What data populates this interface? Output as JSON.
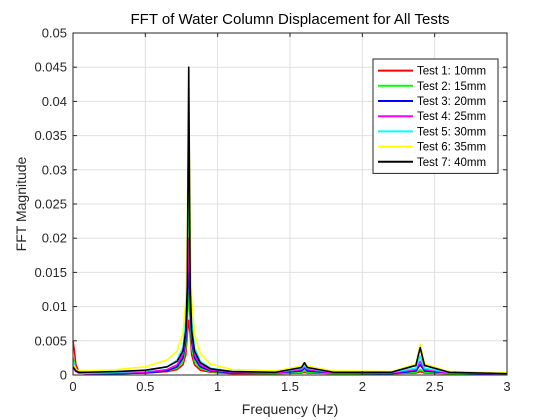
{
  "chart_data": {
    "type": "line",
    "title": "FFT of Water Column Displacement for All Tests",
    "xlabel": "Frequency (Hz)",
    "ylabel": "FFT Magnitude",
    "xlim": [
      0,
      3
    ],
    "ylim": [
      0,
      0.05
    ],
    "x_ticks": [
      0,
      0.5,
      1,
      1.5,
      2,
      2.5,
      3
    ],
    "x_tick_labels": [
      "0",
      "0.5",
      "1",
      "1.5",
      "2",
      "2.5",
      "3"
    ],
    "y_ticks": [
      0,
      0.005,
      0.01,
      0.015,
      0.02,
      0.025,
      0.03,
      0.035,
      0.04,
      0.045,
      0.05
    ],
    "y_tick_labels": [
      "0",
      "0.005",
      "0.01",
      "0.015",
      "0.02",
      "0.025",
      "0.03",
      "0.035",
      "0.04",
      "0.045",
      "0.05"
    ],
    "grid": true,
    "legend_position": "top-right",
    "series": [
      {
        "name": "Test 1: 10mm",
        "color": "#ff0000",
        "x": [
          0,
          0.01,
          0.02,
          0.04,
          0.1,
          0.3,
          0.5,
          0.65,
          0.72,
          0.76,
          0.78,
          0.79,
          0.8,
          0.81,
          0.82,
          0.84,
          0.88,
          0.95,
          1.1,
          1.4,
          1.58,
          1.6,
          1.62,
          1.8,
          2.2,
          2.37,
          2.4,
          2.43,
          2.6,
          3.0
        ],
        "values": [
          0.005,
          0.0035,
          0.0015,
          0.0005,
          0.0002,
          0.0002,
          0.0003,
          0.0005,
          0.0008,
          0.0015,
          0.003,
          0.006,
          0.008,
          0.006,
          0.003,
          0.0015,
          0.0007,
          0.0004,
          0.0002,
          0.0002,
          0.0003,
          0.0004,
          0.0003,
          0.0002,
          0.0002,
          0.0003,
          0.0005,
          0.0003,
          0.0002,
          0.0001
        ]
      },
      {
        "name": "Test 2: 15mm",
        "color": "#00ff00",
        "x": [
          0,
          0.01,
          0.02,
          0.04,
          0.1,
          0.3,
          0.5,
          0.65,
          0.72,
          0.76,
          0.78,
          0.79,
          0.8,
          0.81,
          0.82,
          0.84,
          0.88,
          0.95,
          1.1,
          1.4,
          1.58,
          1.6,
          1.62,
          1.8,
          2.2,
          2.37,
          2.4,
          2.43,
          2.6,
          3.0
        ],
        "values": [
          0.0025,
          0.0018,
          0.0008,
          0.0004,
          0.0002,
          0.0002,
          0.0003,
          0.0006,
          0.001,
          0.002,
          0.004,
          0.008,
          0.012,
          0.008,
          0.004,
          0.002,
          0.001,
          0.0005,
          0.0003,
          0.0002,
          0.0004,
          0.0006,
          0.0004,
          0.0002,
          0.0002,
          0.0004,
          0.0008,
          0.0004,
          0.0002,
          0.0001
        ]
      },
      {
        "name": "Test 3: 20mm",
        "color": "#0000ff",
        "x": [
          0,
          0.01,
          0.02,
          0.04,
          0.1,
          0.3,
          0.5,
          0.65,
          0.72,
          0.76,
          0.78,
          0.79,
          0.8,
          0.81,
          0.82,
          0.84,
          0.88,
          0.95,
          1.1,
          1.4,
          1.58,
          1.6,
          1.62,
          1.8,
          2.2,
          2.37,
          2.4,
          2.43,
          2.6,
          3.0
        ],
        "values": [
          0.0015,
          0.001,
          0.0006,
          0.0003,
          0.0002,
          0.0002,
          0.0003,
          0.0006,
          0.0012,
          0.0025,
          0.005,
          0.01,
          0.016,
          0.01,
          0.005,
          0.0025,
          0.0012,
          0.0006,
          0.0003,
          0.0003,
          0.0006,
          0.001,
          0.0006,
          0.0003,
          0.0002,
          0.0006,
          0.0015,
          0.0006,
          0.0003,
          0.0001
        ]
      },
      {
        "name": "Test 4: 25mm",
        "color": "#ff00ff",
        "x": [
          0,
          0.01,
          0.02,
          0.04,
          0.1,
          0.3,
          0.5,
          0.65,
          0.72,
          0.76,
          0.78,
          0.79,
          0.8,
          0.81,
          0.82,
          0.84,
          0.88,
          0.95,
          1.1,
          1.4,
          1.58,
          1.6,
          1.62,
          1.8,
          2.2,
          2.37,
          2.4,
          2.43,
          2.6,
          3.0
        ],
        "values": [
          0.001,
          0.0008,
          0.0005,
          0.0003,
          0.0002,
          0.0003,
          0.0004,
          0.0008,
          0.0015,
          0.003,
          0.006,
          0.012,
          0.02,
          0.012,
          0.006,
          0.003,
          0.0015,
          0.0007,
          0.0004,
          0.0003,
          0.0008,
          0.0012,
          0.0008,
          0.0003,
          0.0003,
          0.0008,
          0.002,
          0.0008,
          0.0003,
          0.0002
        ]
      },
      {
        "name": "Test 5: 30mm",
        "color": "#00ffff",
        "x": [
          0,
          0.01,
          0.02,
          0.04,
          0.1,
          0.3,
          0.5,
          0.65,
          0.72,
          0.76,
          0.78,
          0.79,
          0.8,
          0.81,
          0.82,
          0.84,
          0.88,
          0.95,
          1.1,
          1.4,
          1.58,
          1.6,
          1.62,
          1.8,
          2.2,
          2.37,
          2.4,
          2.43,
          2.6,
          3.0
        ],
        "values": [
          0.002,
          0.0014,
          0.0007,
          0.0004,
          0.0003,
          0.0004,
          0.0006,
          0.0012,
          0.0022,
          0.004,
          0.008,
          0.016,
          0.028,
          0.016,
          0.008,
          0.004,
          0.002,
          0.001,
          0.0005,
          0.0004,
          0.001,
          0.0014,
          0.001,
          0.0004,
          0.0004,
          0.001,
          0.0028,
          0.001,
          0.0004,
          0.0002
        ]
      },
      {
        "name": "Test 6: 35mm",
        "color": "#ffff00",
        "x": [
          0,
          0.01,
          0.02,
          0.04,
          0.1,
          0.3,
          0.5,
          0.65,
          0.72,
          0.76,
          0.78,
          0.79,
          0.8,
          0.81,
          0.82,
          0.84,
          0.88,
          0.95,
          1.1,
          1.4,
          1.58,
          1.6,
          1.62,
          1.8,
          2.2,
          2.37,
          2.4,
          2.43,
          2.6,
          3.0
        ],
        "values": [
          0.0015,
          0.0012,
          0.0008,
          0.0006,
          0.0006,
          0.0008,
          0.0012,
          0.0022,
          0.0035,
          0.006,
          0.011,
          0.022,
          0.039,
          0.022,
          0.011,
          0.006,
          0.0032,
          0.0016,
          0.0008,
          0.0006,
          0.0013,
          0.0016,
          0.0013,
          0.0006,
          0.0005,
          0.0016,
          0.0045,
          0.0016,
          0.0005,
          0.0003
        ]
      },
      {
        "name": "Test 7: 40mm",
        "color": "#000000",
        "x": [
          0,
          0.01,
          0.02,
          0.04,
          0.1,
          0.3,
          0.5,
          0.65,
          0.72,
          0.76,
          0.78,
          0.79,
          0.8,
          0.81,
          0.82,
          0.84,
          0.88,
          0.95,
          1.1,
          1.4,
          1.58,
          1.6,
          1.62,
          1.8,
          2.2,
          2.37,
          2.4,
          2.43,
          2.6,
          3.0
        ],
        "values": [
          0.0012,
          0.0009,
          0.0006,
          0.0004,
          0.0004,
          0.0005,
          0.0007,
          0.0012,
          0.002,
          0.0035,
          0.0065,
          0.013,
          0.045,
          0.013,
          0.0065,
          0.0035,
          0.0018,
          0.0009,
          0.0005,
          0.0004,
          0.0011,
          0.0018,
          0.0011,
          0.0004,
          0.0004,
          0.0014,
          0.004,
          0.0014,
          0.0004,
          0.0002
        ]
      }
    ]
  }
}
